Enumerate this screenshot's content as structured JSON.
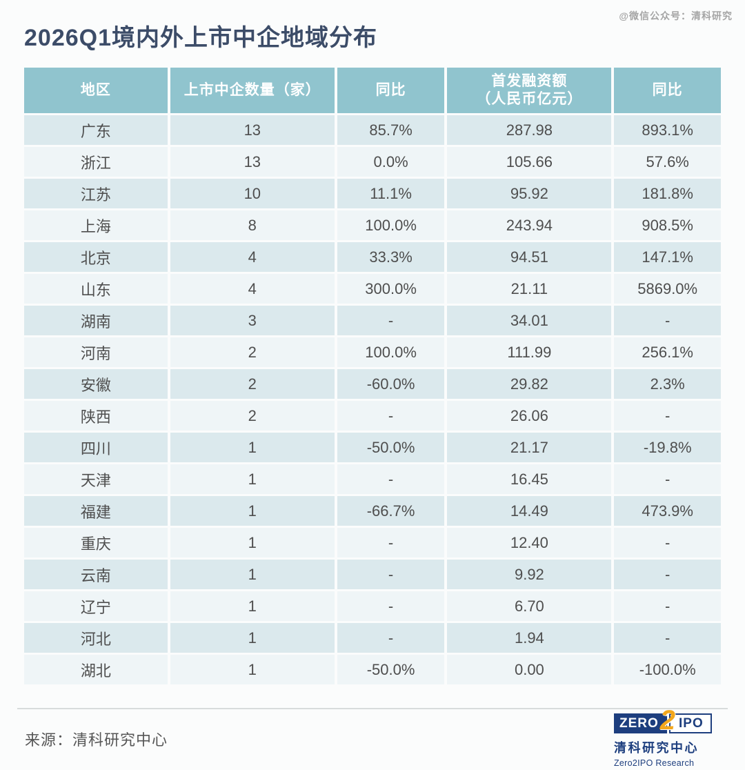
{
  "watermark": "@微信公众号：清科研究",
  "title": "2026Q1境内外上市中企地域分布",
  "chart_data": {
    "type": "table",
    "title": "2026Q1境内外上市中企地域分布",
    "columns": [
      "地区",
      "上市中企数量（家）",
      "同比",
      "首发融资额（人民币亿元）",
      "同比"
    ],
    "header_display": {
      "col4_line1": "首发融资额",
      "col4_line2": "（人民币亿元）"
    },
    "rows": [
      [
        "广东",
        "13",
        "85.7%",
        "287.98",
        "893.1%"
      ],
      [
        "浙江",
        "13",
        "0.0%",
        "105.66",
        "57.6%"
      ],
      [
        "江苏",
        "10",
        "11.1%",
        "95.92",
        "181.8%"
      ],
      [
        "上海",
        "8",
        "100.0%",
        "243.94",
        "908.5%"
      ],
      [
        "北京",
        "4",
        "33.3%",
        "94.51",
        "147.1%"
      ],
      [
        "山东",
        "4",
        "300.0%",
        "21.11",
        "5869.0%"
      ],
      [
        "湖南",
        "3",
        "-",
        "34.01",
        "-"
      ],
      [
        "河南",
        "2",
        "100.0%",
        "111.99",
        "256.1%"
      ],
      [
        "安徽",
        "2",
        "-60.0%",
        "29.82",
        "2.3%"
      ],
      [
        "陕西",
        "2",
        "-",
        "26.06",
        "-"
      ],
      [
        "四川",
        "1",
        "-50.0%",
        "21.17",
        "-19.8%"
      ],
      [
        "天津",
        "1",
        "-",
        "16.45",
        "-"
      ],
      [
        "福建",
        "1",
        "-66.7%",
        "14.49",
        "473.9%"
      ],
      [
        "重庆",
        "1",
        "-",
        "12.40",
        "-"
      ],
      [
        "云南",
        "1",
        "-",
        "9.92",
        "-"
      ],
      [
        "辽宁",
        "1",
        "-",
        "6.70",
        "-"
      ],
      [
        "河北",
        "1",
        "-",
        "1.94",
        "-"
      ],
      [
        "湖北",
        "1",
        "-50.0%",
        "0.00",
        "-100.0%"
      ]
    ],
    "source": "来源：清科研究中心",
    "layout": {
      "striped": true,
      "header_bg": "#90c4ce",
      "row_dark_bg": "#dbe9ed",
      "row_light_bg": "#eff5f7"
    }
  },
  "footer": {
    "source_label": "来源：清科研究中心",
    "logo": {
      "zero": "ZERO",
      "two": "2",
      "ipo": "IPO",
      "cn": "清科研究中心",
      "en": "Zero2IPO Research"
    }
  },
  "colors": {
    "page_bg": "#fbfcfc",
    "title": "#3c4c68",
    "header_bg": "#90c4ce",
    "header_text": "#ffffff",
    "row_dark": "#dbe9ed",
    "row_light": "#eff5f7",
    "cell_text": "#4e4e4e",
    "watermark": "#979797",
    "navy": "#1d3e7e",
    "orange": "#f3a71c"
  }
}
